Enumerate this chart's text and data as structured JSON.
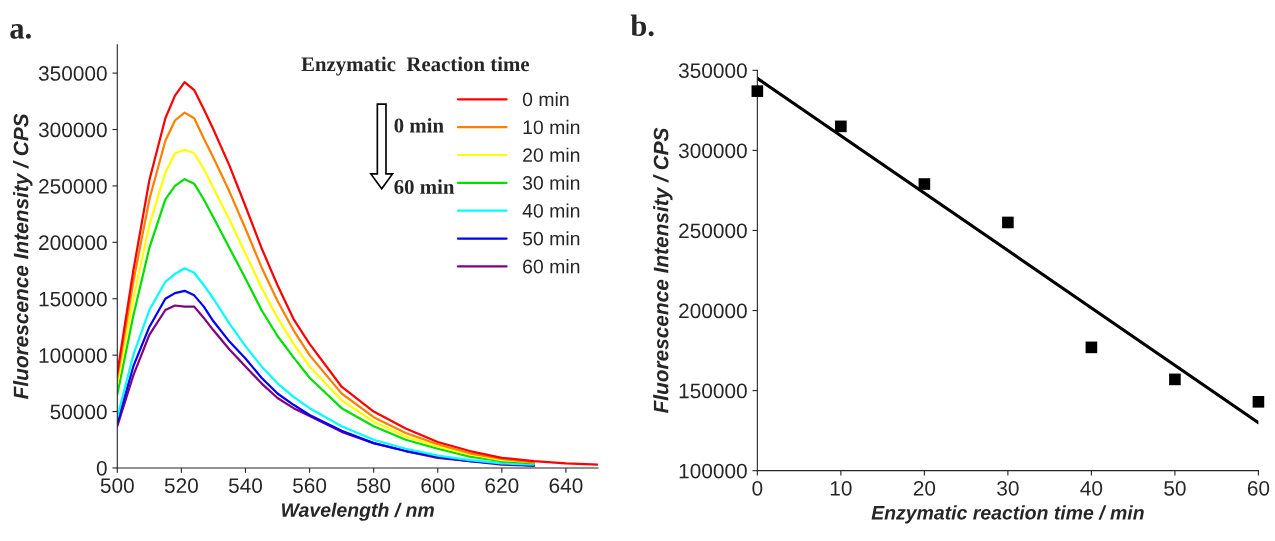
{
  "chart_data": [
    {
      "type": "line",
      "title": "a.",
      "xlabel": "Wavelength / nm",
      "ylabel": "Fluorescence Intensity / CPS",
      "x": [
        500,
        505,
        510,
        515,
        518,
        521,
        524,
        527,
        530,
        535,
        540,
        545,
        550,
        555,
        560,
        570,
        580,
        590,
        600,
        610,
        620,
        630,
        640,
        650
      ],
      "series": [
        {
          "name": "0 min",
          "color": "#ff0000",
          "values": [
            84000,
            175000,
            255000,
            310000,
            330000,
            342000,
            335000,
            318000,
            300000,
            268000,
            232000,
            195000,
            162000,
            132000,
            110000,
            72000,
            50000,
            35000,
            23000,
            15000,
            9000,
            6000,
            4000,
            3000
          ]
        },
        {
          "name": "10 min",
          "color": "#ff8000",
          "values": [
            80000,
            165000,
            238000,
            290000,
            308000,
            315000,
            310000,
            292000,
            275000,
            245000,
            212000,
            178000,
            148000,
            122000,
            100000,
            66000,
            45000,
            31000,
            21000,
            13000,
            8000,
            5000,
            null,
            null
          ]
        },
        {
          "name": "20 min",
          "color": "#ffff00",
          "values": [
            75000,
            150000,
            215000,
            262000,
            279000,
            282000,
            279000,
            265000,
            248000,
            220000,
            190000,
            160000,
            133000,
            110000,
            90000,
            60000,
            41000,
            28000,
            19000,
            12000,
            7000,
            5000,
            null,
            null
          ]
        },
        {
          "name": "30 min",
          "color": "#00e000",
          "values": [
            65000,
            135000,
            195000,
            238000,
            250000,
            256000,
            252000,
            238000,
            222000,
            195000,
            168000,
            140000,
            117000,
            98000,
            80000,
            53000,
            37000,
            25000,
            17000,
            10000,
            6000,
            4000,
            null,
            null
          ]
        },
        {
          "name": "40 min",
          "color": "#00ffff",
          "values": [
            45000,
            100000,
            140000,
            165000,
            172000,
            177000,
            173000,
            162000,
            150000,
            128000,
            108000,
            90000,
            75000,
            63000,
            53000,
            37000,
            25000,
            17000,
            11000,
            7000,
            4000,
            3000,
            null,
            null
          ]
        },
        {
          "name": "50 min",
          "color": "#0000ff",
          "values": [
            40000,
            90000,
            125000,
            150000,
            155000,
            157000,
            153000,
            143000,
            130000,
            112000,
            97000,
            80000,
            66000,
            56000,
            47000,
            33000,
            22000,
            15000,
            10000,
            6000,
            4000,
            2000,
            null,
            null
          ]
        },
        {
          "name": "60 min",
          "color": "#800080",
          "values": [
            37000,
            82000,
            118000,
            140000,
            144000,
            143000,
            143000,
            133000,
            122000,
            105000,
            90000,
            75000,
            62000,
            53000,
            46000,
            32000,
            22000,
            15000,
            9000,
            6000,
            3000,
            2000,
            null,
            null
          ]
        }
      ],
      "xlim": [
        500,
        650
      ],
      "xticks": [
        500,
        520,
        540,
        560,
        580,
        600,
        620,
        640
      ],
      "ylim": [
        0,
        375000
      ],
      "yticks": [
        0,
        50000,
        100000,
        150000,
        200000,
        250000,
        300000,
        350000
      ],
      "legend": "top right",
      "grid": false,
      "annotations": [
        "Enzymatic  Reaction time",
        "0 min",
        "60 min"
      ]
    },
    {
      "type": "scatter",
      "title": "b.",
      "xlabel": "Enzymatic reaction time / min",
      "ylabel": "Fluorescence Intensity / CPS",
      "x": [
        0,
        10,
        20,
        30,
        40,
        50,
        60
      ],
      "series": [
        {
          "color": "#000000",
          "marker": "square",
          "values": [
            337000,
            315000,
            279000,
            255000,
            177000,
            157000,
            143000
          ]
        },
        {
          "type": "line",
          "color": "#000000",
          "marker": "none",
          "x": [
            0,
            60
          ],
          "values": [
            345000,
            130000
          ]
        }
      ],
      "xlim": [
        0,
        60
      ],
      "xticks": [
        0,
        10,
        20,
        30,
        40,
        50,
        60
      ],
      "ylim": [
        100000,
        350000
      ],
      "yticks": [
        100000,
        150000,
        200000,
        250000,
        300000,
        350000
      ],
      "legend": false,
      "grid": false
    }
  ]
}
